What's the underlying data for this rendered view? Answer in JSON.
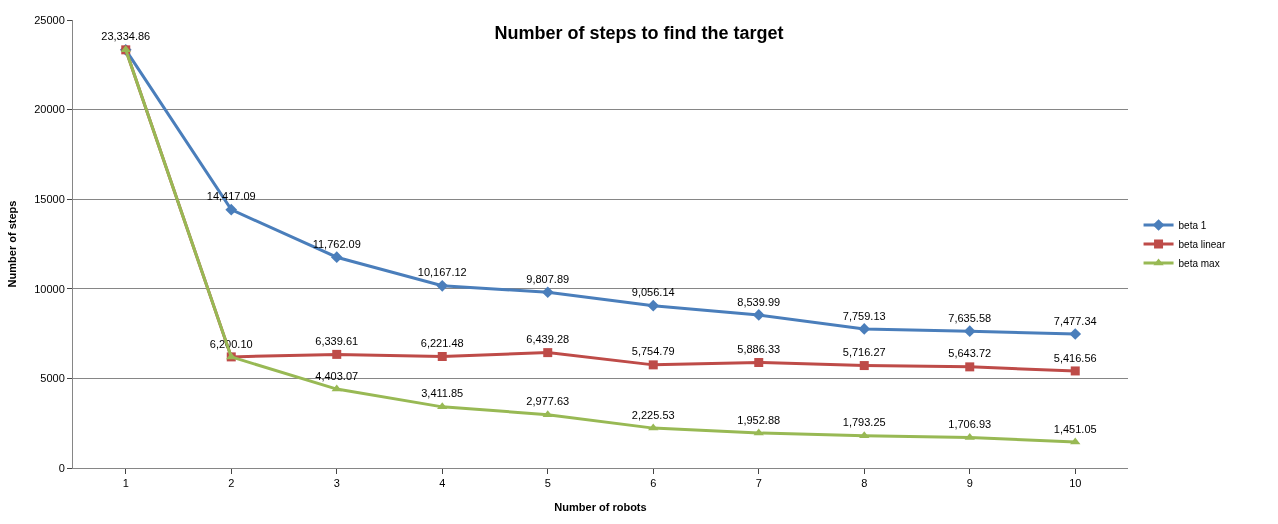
{
  "chart_data": {
    "type": "line",
    "title": "Number of steps to find the target",
    "xlabel": "Number of robots",
    "ylabel": "Number of steps",
    "categories": [
      "1",
      "2",
      "3",
      "4",
      "5",
      "6",
      "7",
      "8",
      "9",
      "10"
    ],
    "ylim": [
      0,
      25000
    ],
    "yticks": [
      0,
      5000,
      10000,
      15000,
      20000,
      25000
    ],
    "grid": "y",
    "legend": "right",
    "line_style": "solid",
    "series": [
      {
        "name": "beta 1",
        "color": "#4a7ebb",
        "marker": "diamond",
        "values": [
          23334.86,
          14417.09,
          11762.09,
          10167.12,
          9807.89,
          9056.14,
          8539.99,
          7759.13,
          7635.58,
          7477.34
        ],
        "value_labels": [
          "23,334.86",
          "14,417.09",
          "11,762.09",
          "10,167.12",
          "9,807.89",
          "9,056.14",
          "8,539.99",
          "7,759.13",
          "7,635.58",
          "7,477.34"
        ]
      },
      {
        "name": "beta linear",
        "color": "#be4b48",
        "marker": "square",
        "values": [
          23334.86,
          6200.1,
          6339.61,
          6221.48,
          6439.28,
          5754.79,
          5886.33,
          5716.27,
          5643.72,
          5416.56
        ],
        "value_labels": [
          null,
          "6,200.10",
          "6,339.61",
          "6,221.48",
          "6,439.28",
          "5,754.79",
          "5,886.33",
          "5,716.27",
          "5,643.72",
          "5,416.56"
        ]
      },
      {
        "name": "beta max",
        "color": "#98b954",
        "marker": "triangle",
        "values": [
          23334.86,
          6200.1,
          4403.07,
          3411.85,
          2977.63,
          2225.53,
          1952.88,
          1793.25,
          1706.93,
          1451.05
        ],
        "value_labels": [
          null,
          null,
          "4,403.07",
          "3,411.85",
          "2,977.63",
          "2,225.53",
          "1,952.88",
          "1,793.25",
          "1,706.93",
          "1,451.05"
        ]
      }
    ]
  }
}
